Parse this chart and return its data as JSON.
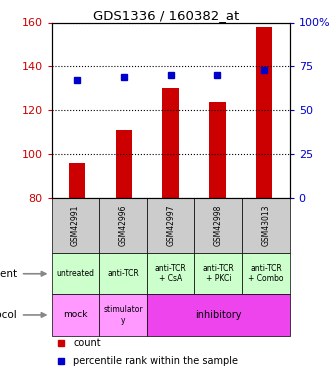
{
  "title": "GDS1336 / 160382_at",
  "samples": [
    "GSM42991",
    "GSM42996",
    "GSM42997",
    "GSM42998",
    "GSM43013"
  ],
  "counts": [
    96,
    111,
    130,
    124,
    158
  ],
  "percentiles": [
    67,
    69,
    70,
    70,
    73
  ],
  "ylim_left": [
    80,
    160
  ],
  "yticks_left": [
    80,
    100,
    120,
    140,
    160
  ],
  "ylim_right": [
    0,
    100
  ],
  "yticks_right": [
    0,
    25,
    50,
    75,
    100
  ],
  "bar_color": "#cc0000",
  "dot_color": "#0000cc",
  "agent_labels": [
    "untreated",
    "anti-TCR",
    "anti-TCR\n+ CsA",
    "anti-TCR\n+ PKCi",
    "anti-TCR\n+ Combo"
  ],
  "sample_bg": "#cccccc",
  "agent_bg": "#ccffcc",
  "protocol_mock_bg": "#ff99ff",
  "protocol_stim_bg": "#ff99ff",
  "protocol_inhib_bg": "#ee44ee",
  "left_ylabel_color": "#cc0000",
  "right_ylabel_color": "#0000cc",
  "bar_width": 0.35
}
